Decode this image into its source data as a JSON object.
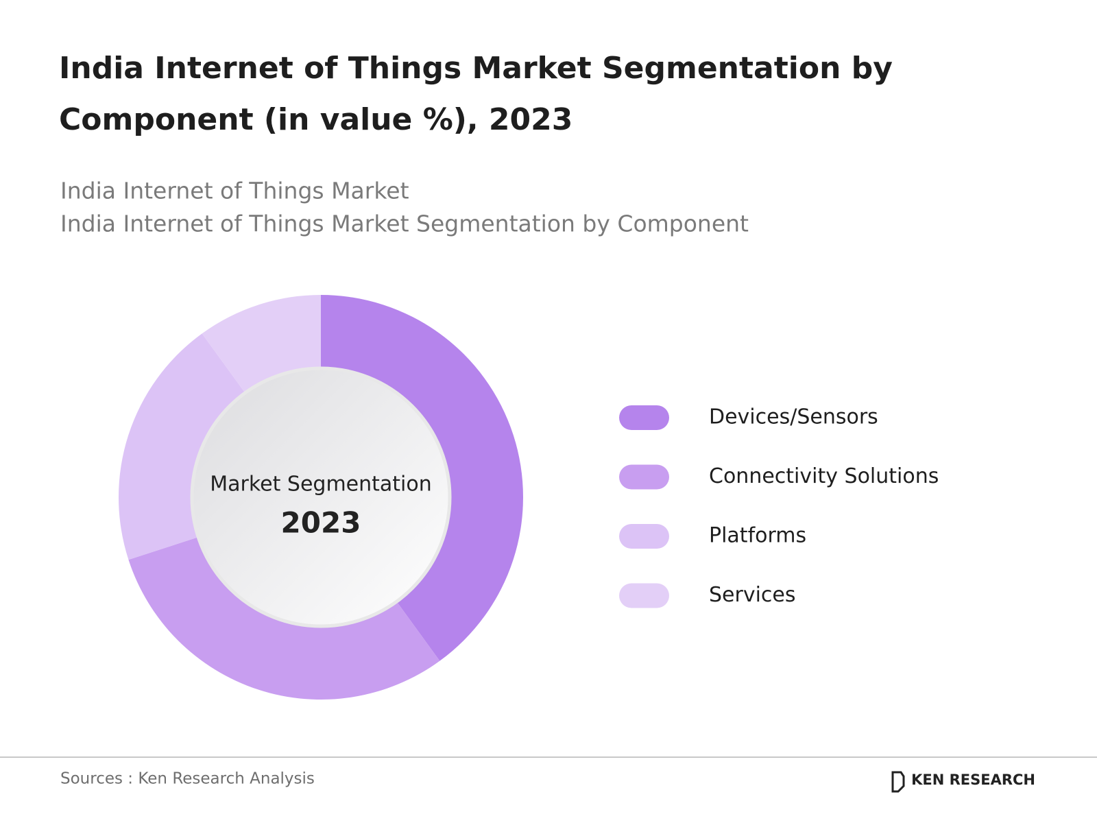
{
  "chart_data": {
    "type": "donut",
    "title": "India Internet of Things Market Segmentation by Component (in value %), 2023",
    "subtitle": [
      "India Internet of Things Market",
      "India Internet of Things Market Segmentation by Component"
    ],
    "center_label": "Market Segmentation",
    "center_year": "2023",
    "categories": [
      "Devices/Sensors",
      "Connectivity Solutions",
      "Platforms",
      "Services"
    ],
    "values": [
      40,
      30,
      20,
      10
    ],
    "colors": [
      "#b584ec",
      "#c89ef0",
      "#dcc3f6",
      "#e3cff7"
    ]
  },
  "footer": {
    "source": "Sources : Ken Research Analysis",
    "brand": "KEN RESEARCH"
  }
}
